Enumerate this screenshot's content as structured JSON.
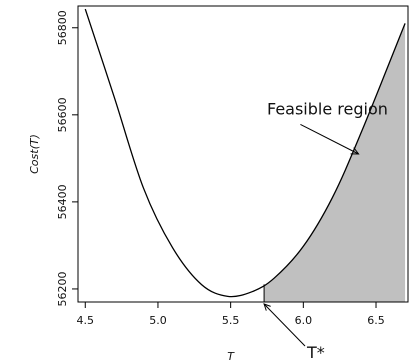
{
  "chart_data": {
    "type": "line",
    "title": "",
    "xlabel": "T",
    "ylabel": "Cost(T)",
    "xlim": [
      4.45,
      6.72
    ],
    "ylim": [
      56170,
      56850
    ],
    "x_ticks": [
      4.5,
      5.0,
      5.5,
      6.0,
      6.5
    ],
    "x_tick_labels": [
      "4.5",
      "5.0",
      "5.5",
      "6.0",
      "6.5"
    ],
    "y_ticks": [
      56200,
      56400,
      56600,
      56800
    ],
    "y_tick_labels": [
      "56200",
      "56400",
      "56600",
      "56800"
    ],
    "grid": false,
    "legend": "none",
    "series": [
      {
        "name": "",
        "x": [
          4.5,
          4.7,
          4.9,
          5.1,
          5.3,
          5.48,
          5.65,
          5.8,
          6.0,
          6.2,
          6.4,
          6.7
        ],
        "y": [
          56843,
          56640,
          56432,
          56295,
          56210,
          56183,
          56194,
          56225,
          56298,
          56410,
          56561,
          56810
        ]
      }
    ],
    "shaded_region": {
      "x_start": 5.73,
      "x_end": 6.72,
      "fill": "#c0c0c0"
    },
    "annotations": [
      {
        "text": "Feasible region",
        "text_x": 5.75,
        "text_y": 56615,
        "arrow_x": 6.38,
        "arrow_y": 56510
      },
      {
        "text": "T*",
        "text_x": 6.02,
        "text_y": 56044,
        "arrow_x": 5.73,
        "arrow_y": 56170
      }
    ],
    "colors": {
      "line": "#000000",
      "fill": "#c0c0c0",
      "frame": "#000000"
    }
  }
}
